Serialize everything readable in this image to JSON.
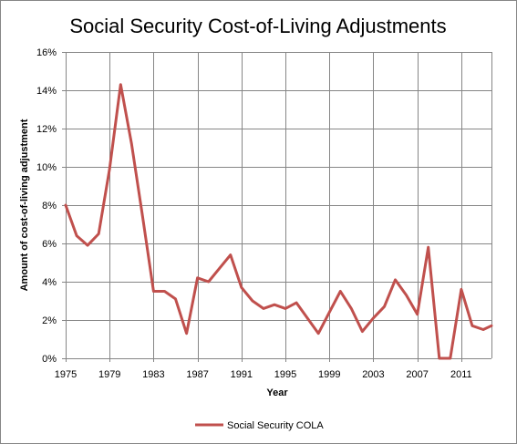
{
  "chart_data": {
    "type": "line",
    "title": "Social Security Cost-of-Living Adjustments",
    "xlabel": "Year",
    "ylabel": "Amount of cost-of-living  adjustment",
    "xlim": [
      1975,
      2013
    ],
    "ylim": [
      0,
      16
    ],
    "x_ticks": [
      1975,
      1979,
      1983,
      1987,
      1991,
      1995,
      1999,
      2003,
      2007,
      2011
    ],
    "x_tick_labels": [
      "1975",
      "1979",
      "1983",
      "1987",
      "1991",
      "1995",
      "1999",
      "2003",
      "2007",
      "2011"
    ],
    "y_ticks": [
      0,
      2,
      4,
      6,
      8,
      10,
      12,
      14,
      16
    ],
    "y_tick_labels": [
      "0%",
      "2%",
      "4%",
      "6%",
      "8%",
      "10%",
      "12%",
      "14%",
      "16%"
    ],
    "grid": true,
    "legend_position": "bottom",
    "series": [
      {
        "name": "Social Security COLA",
        "color": "#c0504d",
        "x": [
          1975,
          1976,
          1977,
          1978,
          1979,
          1980,
          1981,
          1982,
          1983,
          1984,
          1985,
          1986,
          1987,
          1988,
          1989,
          1990,
          1991,
          1992,
          1993,
          1994,
          1995,
          1996,
          1997,
          1998,
          1999,
          2000,
          2001,
          2002,
          2003,
          2004,
          2005,
          2006,
          2007,
          2008,
          2009,
          2010,
          2011,
          2012,
          2013
        ],
        "values": [
          8.0,
          6.4,
          5.9,
          6.5,
          9.9,
          14.3,
          11.2,
          7.4,
          3.5,
          3.5,
          3.1,
          1.3,
          4.2,
          4.0,
          4.7,
          5.4,
          3.7,
          3.0,
          2.6,
          2.8,
          2.6,
          2.9,
          2.1,
          1.3,
          2.4,
          3.5,
          2.6,
          1.4,
          2.1,
          2.7,
          4.1,
          3.3,
          2.3,
          5.8,
          0.0,
          0.0,
          3.6,
          1.7,
          1.5
        ]
      }
    ],
    "x_end": 2013.75,
    "y_end": 1.7
  }
}
